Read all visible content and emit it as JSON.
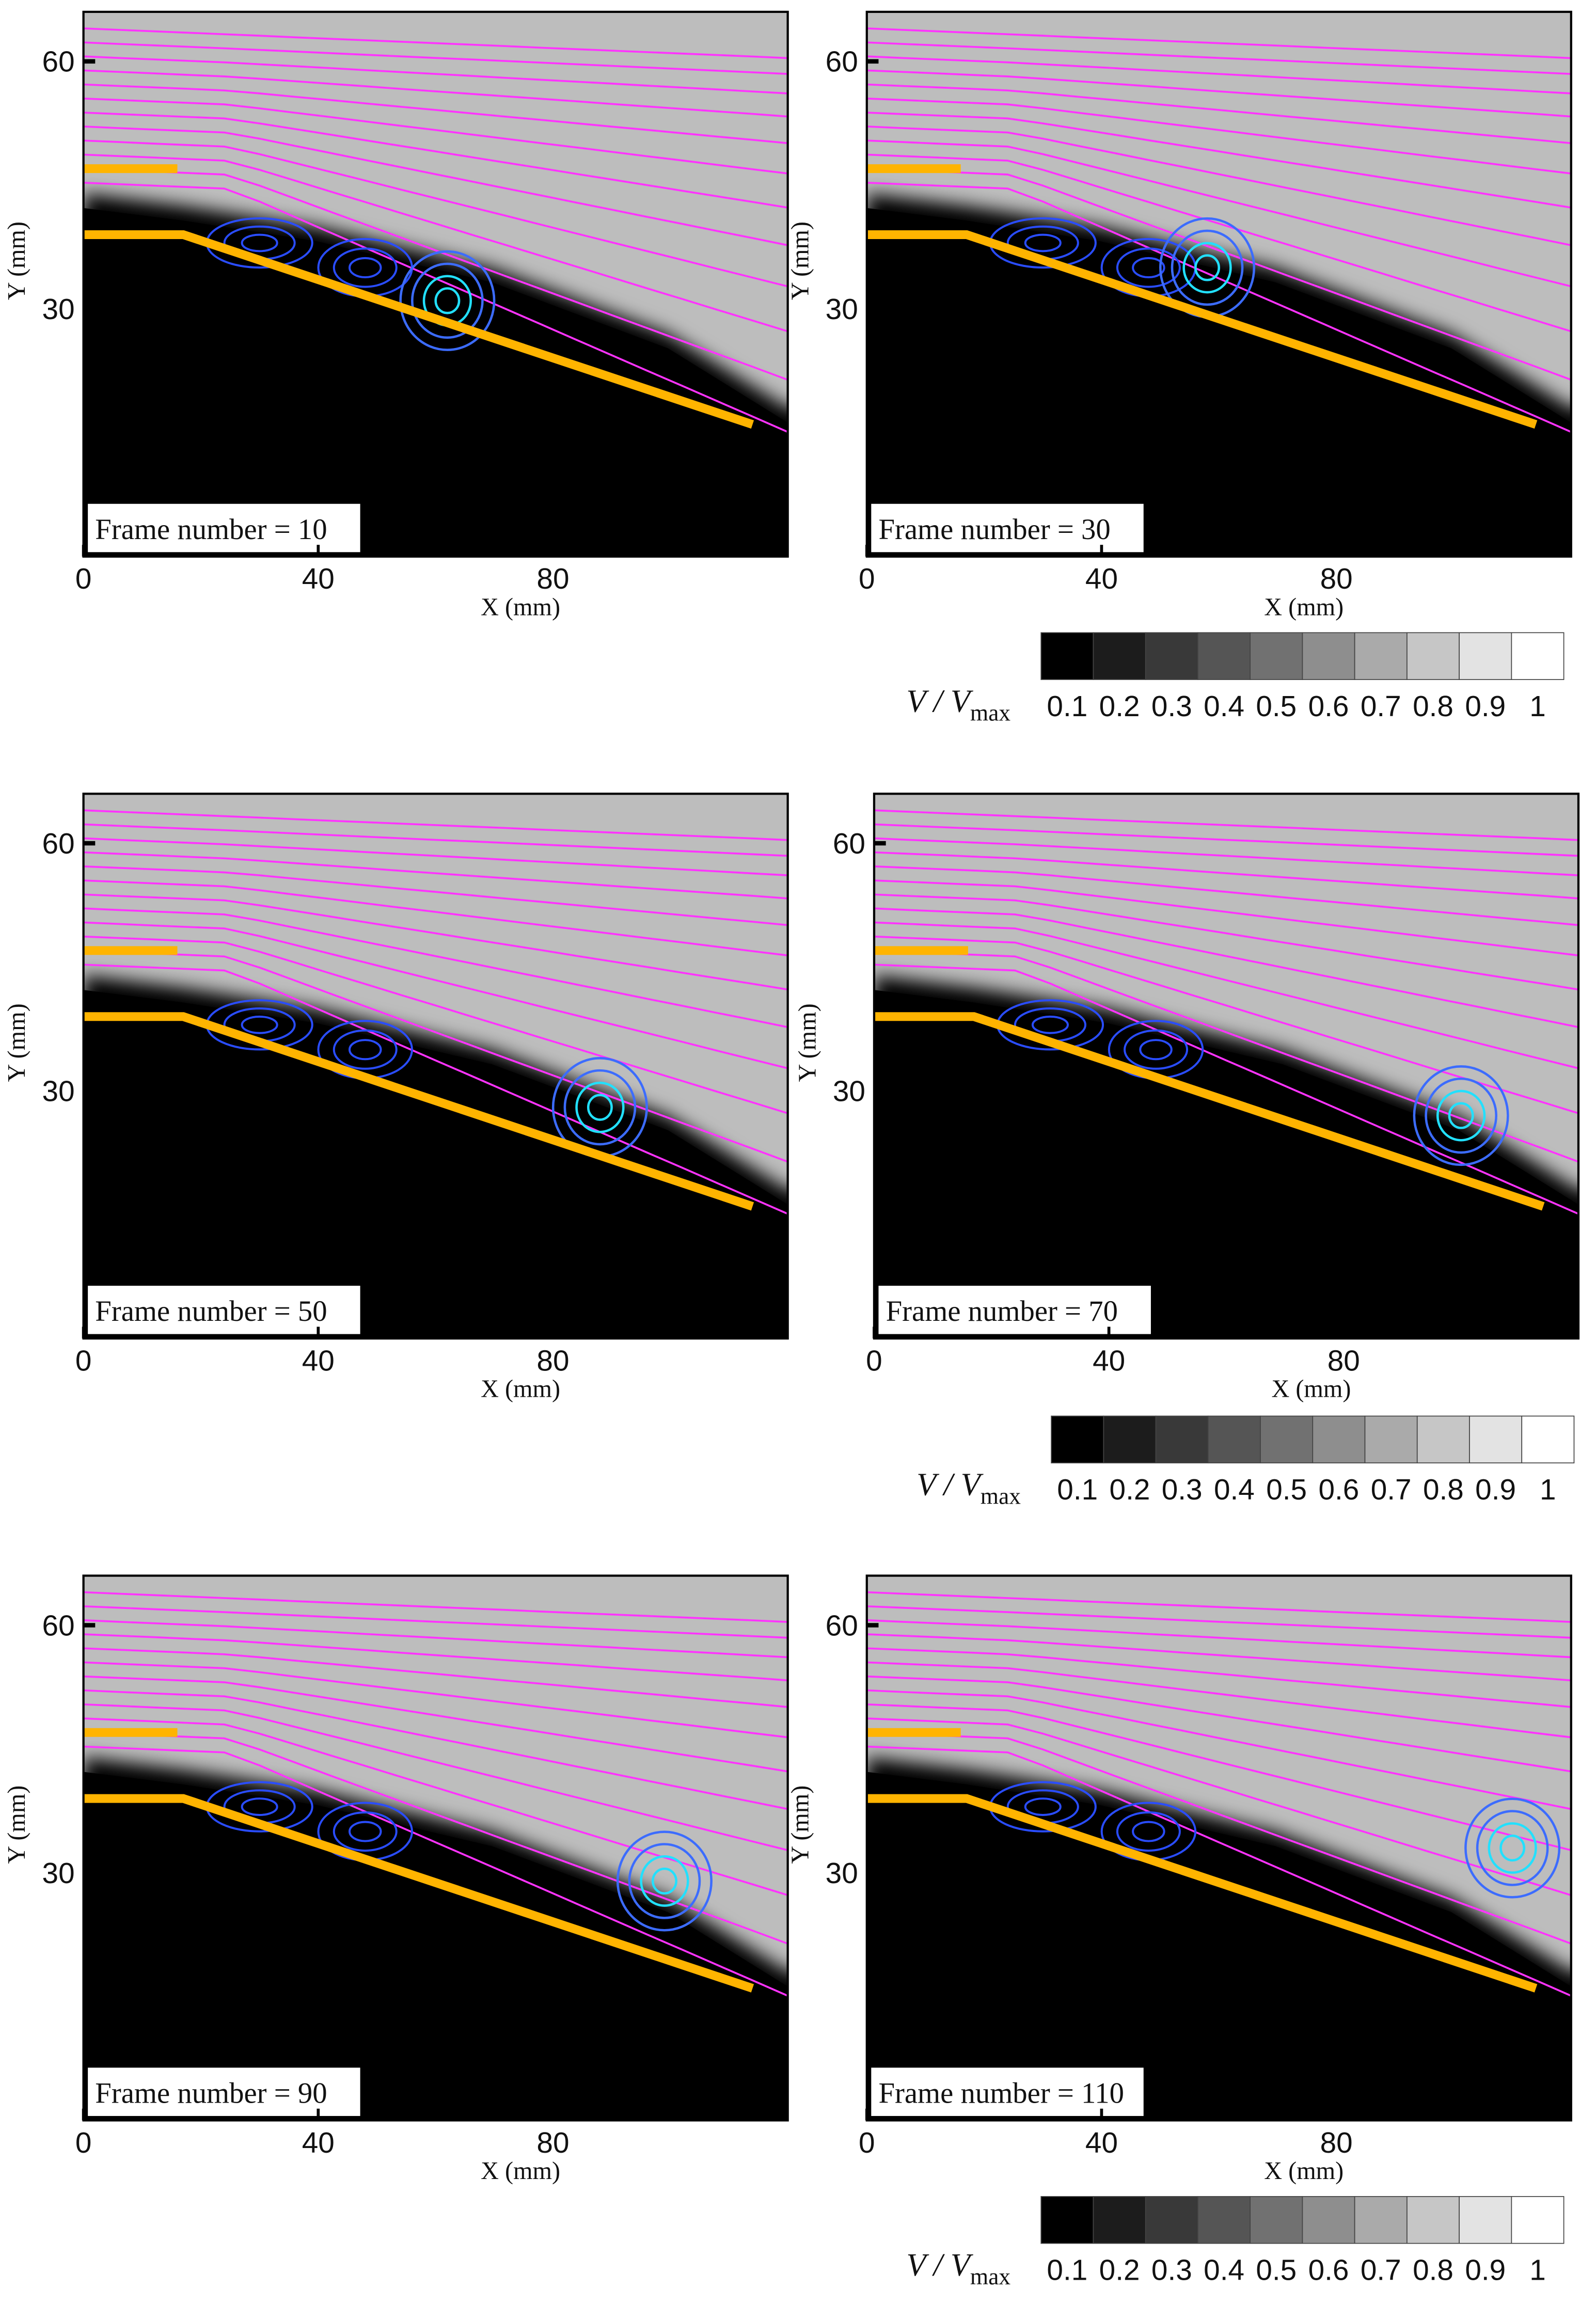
{
  "chart_data": [
    {
      "type": "contour",
      "annotation": "Frame number = 10",
      "xlabel": "X (mm)",
      "ylabel": "Y (mm)",
      "xlim": [
        0,
        120
      ],
      "ylim": [
        0,
        66
      ],
      "xticks": [
        0,
        40,
        80
      ],
      "yticks": [
        30,
        60
      ]
    },
    {
      "type": "contour",
      "annotation": "Frame number = 30",
      "xlabel": "X (mm)",
      "ylabel": "Y (mm)",
      "xlim": [
        0,
        120
      ],
      "ylim": [
        0,
        66
      ],
      "xticks": [
        0,
        40,
        80
      ],
      "yticks": [
        30,
        60
      ],
      "colorbar": {
        "label": "V / V",
        "label_subscript": "max",
        "ticks": [
          0.1,
          0.2,
          0.3,
          0.4,
          0.5,
          0.6,
          0.7,
          0.8,
          0.9,
          1
        ]
      }
    },
    {
      "type": "contour",
      "annotation": "Frame number = 50",
      "xlabel": "X (mm)",
      "ylabel": "Y (mm)",
      "xlim": [
        0,
        120
      ],
      "ylim": [
        0,
        66
      ],
      "xticks": [
        0,
        40,
        80
      ],
      "yticks": [
        30,
        60
      ]
    },
    {
      "type": "contour",
      "annotation": "Frame number = 70",
      "xlabel": "X (mm)",
      "ylabel": "Y (mm)",
      "xlim": [
        0,
        120
      ],
      "ylim": [
        0,
        66
      ],
      "xticks": [
        0,
        40,
        80
      ],
      "yticks": [
        30,
        60
      ],
      "colorbar": {
        "label": "V / V",
        "label_subscript": "max",
        "ticks": [
          0.1,
          0.2,
          0.3,
          0.4,
          0.5,
          0.6,
          0.7,
          0.8,
          0.9,
          1
        ]
      }
    },
    {
      "type": "contour",
      "annotation": "Frame number = 90",
      "xlabel": "X (mm)",
      "ylabel": "Y (mm)",
      "xlim": [
        0,
        120
      ],
      "ylim": [
        0,
        66
      ],
      "xticks": [
        0,
        40,
        80
      ],
      "yticks": [
        30,
        60
      ]
    },
    {
      "type": "contour",
      "annotation": "Frame number = 110",
      "xlabel": "X (mm)",
      "ylabel": "Y (mm)",
      "xlim": [
        0,
        120
      ],
      "ylim": [
        0,
        66
      ],
      "xticks": [
        0,
        40,
        80
      ],
      "yticks": [
        30,
        60
      ],
      "colorbar": {
        "label": "V / V",
        "label_subscript": "max",
        "ticks": [
          0.1,
          0.2,
          0.3,
          0.4,
          0.5,
          0.6,
          0.7,
          0.8,
          0.9,
          1
        ]
      }
    }
  ]
}
